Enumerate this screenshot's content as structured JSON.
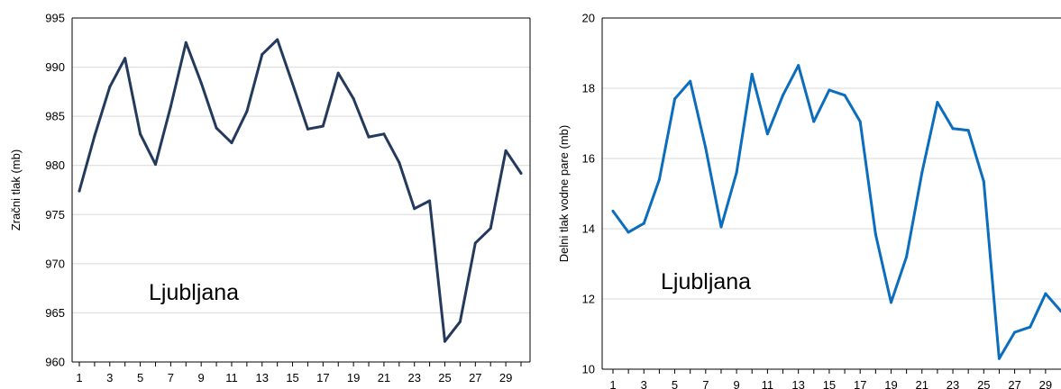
{
  "chart_data": [
    {
      "type": "line",
      "ylabel": "Zračni tlak (mb)",
      "annotation": "Ljubljana",
      "ylim": [
        960,
        995
      ],
      "yticks": [
        "960",
        "965",
        "970",
        "975",
        "980",
        "985",
        "990",
        "995"
      ],
      "xticks": [
        "1",
        "3",
        "5",
        "7",
        "9",
        "11",
        "13",
        "15",
        "17",
        "19",
        "21",
        "23",
        "25",
        "27",
        "29"
      ],
      "grid": true,
      "line_color": "#243a5c",
      "x": [
        1,
        2,
        3,
        4,
        5,
        6,
        7,
        8,
        9,
        10,
        11,
        12,
        13,
        14,
        15,
        16,
        17,
        18,
        19,
        20,
        21,
        22,
        23,
        24,
        25,
        26,
        27,
        28,
        29,
        30
      ],
      "values": [
        977.4,
        983.0,
        988.0,
        990.9,
        983.2,
        980.1,
        986.0,
        992.5,
        988.4,
        983.8,
        982.3,
        985.5,
        991.3,
        992.8,
        988.3,
        983.7,
        984.0,
        989.4,
        986.8,
        982.9,
        983.2,
        980.3,
        975.6,
        976.4,
        962.1,
        964.1,
        972.1,
        973.6,
        981.5,
        979.2
      ]
    },
    {
      "type": "line",
      "ylabel": "Delni tlak vodne pare (mb)",
      "annotation": "Ljubljana",
      "ylim": [
        10,
        20
      ],
      "yticks": [
        "10",
        "12",
        "14",
        "16",
        "18",
        "20"
      ],
      "xticks": [
        "1",
        "3",
        "5",
        "7",
        "9",
        "11",
        "13",
        "15",
        "17",
        "19",
        "21",
        "23",
        "25",
        "27",
        "29"
      ],
      "grid": true,
      "line_color": "#0a6dbd",
      "x": [
        1,
        2,
        3,
        4,
        5,
        6,
        7,
        8,
        9,
        10,
        11,
        12,
        13,
        14,
        15,
        16,
        17,
        18,
        19,
        20,
        21,
        22,
        23,
        24,
        25,
        26,
        27,
        28,
        29,
        30
      ],
      "values": [
        14.5,
        13.9,
        14.15,
        15.4,
        17.7,
        18.2,
        16.3,
        14.05,
        15.6,
        18.4,
        16.7,
        17.8,
        18.65,
        17.05,
        17.95,
        17.8,
        17.05,
        13.85,
        11.9,
        13.2,
        15.6,
        17.6,
        16.85,
        16.8,
        15.35,
        10.3,
        11.05,
        11.2,
        12.15,
        11.65
      ]
    }
  ]
}
